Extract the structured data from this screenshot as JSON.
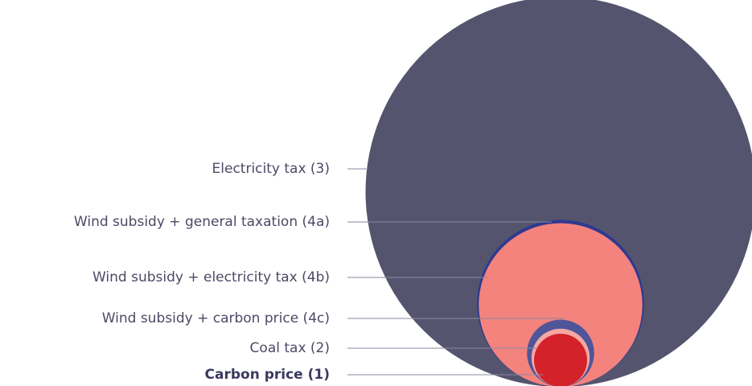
{
  "chart_data": {
    "type": "nested-circles",
    "categories": [
      "Electricity tax (3)",
      "Wind subsidy + general taxation (4a)",
      "Wind subsidy + electricity tax (4b)",
      "Wind subsidy + carbon price (4c)",
      "Coal tax (2)",
      "Carbon price (1)"
    ],
    "values": [
      54,
      9.9,
      9.5,
      1.6,
      1.2,
      1
    ],
    "colors": [
      "#55546f",
      "#2f3a8f",
      "#f4837d",
      "#4f5599",
      "#f6a8a3",
      "#d3222a"
    ]
  }
}
